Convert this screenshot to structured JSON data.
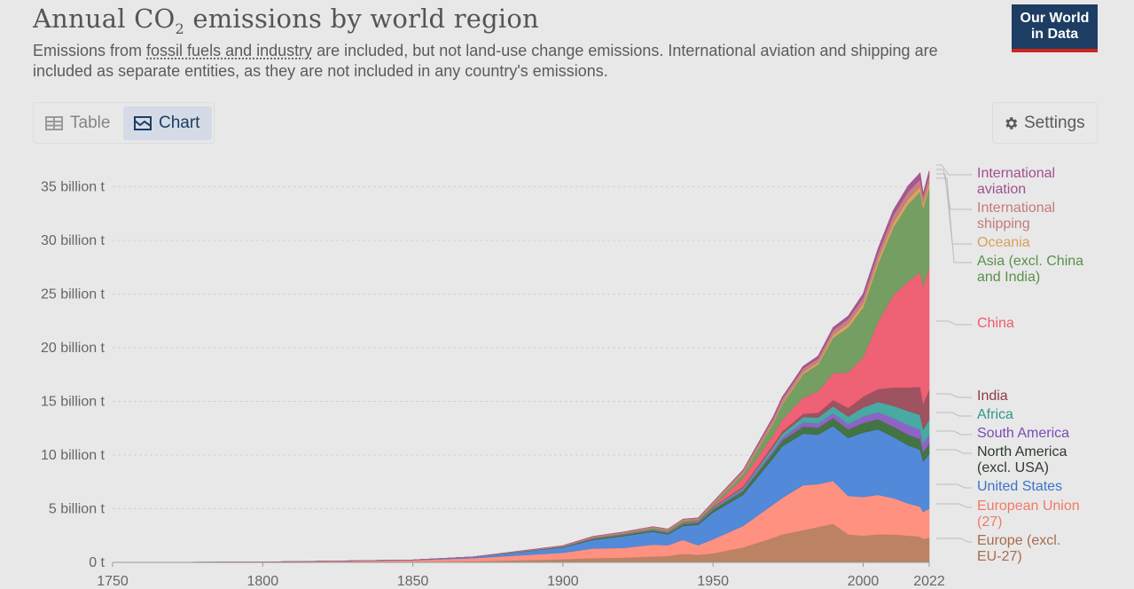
{
  "header": {
    "title_main": "Annual CO",
    "title_sub": "2",
    "title_rest": " emissions by world region",
    "subtitle_pre": "Emissions from ",
    "subtitle_link": "fossil fuels and industry",
    "subtitle_post": " are included, but not land-use change emissions. International aviation and shipping are included as separate entities, as they are not included in any country's emissions.",
    "logo_line1": "Our World",
    "logo_line2": "in Data"
  },
  "tabs": {
    "table_label": "Table",
    "chart_label": "Chart",
    "active": "Chart"
  },
  "settings": {
    "label": "Settings"
  },
  "colors": {
    "logo_bg": "#1d3d63",
    "logo_accent": "#ce261e"
  },
  "chart_data": {
    "type": "area",
    "stacked": true,
    "title": "Annual CO₂ emissions by world region",
    "xlabel": "",
    "ylabel": "",
    "xlim": [
      1750,
      2022
    ],
    "ylim": [
      0,
      37000000000
    ],
    "x_ticks": [
      1750,
      1800,
      1850,
      1900,
      1950,
      2000,
      2022
    ],
    "y_ticks": [
      {
        "value": 0,
        "label": "0 t"
      },
      {
        "value": 5000000000,
        "label": "5 billion t"
      },
      {
        "value": 10000000000,
        "label": "10 billion t"
      },
      {
        "value": 15000000000,
        "label": "15 billion t"
      },
      {
        "value": 20000000000,
        "label": "20 billion t"
      },
      {
        "value": 25000000000,
        "label": "25 billion t"
      },
      {
        "value": 30000000000,
        "label": "30 billion t"
      },
      {
        "value": 35000000000,
        "label": "35 billion t"
      }
    ],
    "grid": true,
    "legend_position": "right",
    "x": [
      1750,
      1800,
      1850,
      1870,
      1900,
      1910,
      1920,
      1930,
      1935,
      1940,
      1945,
      1950,
      1960,
      1970,
      1973,
      1980,
      1985,
      1990,
      1995,
      2000,
      2005,
      2010,
      2015,
      2019,
      2020,
      2022
    ],
    "series": [
      {
        "name": "Europe (excl. EU-27)",
        "color": "#b87c5c",
        "values": [
          0,
          0.01,
          0.05,
          0.1,
          0.3,
          0.4,
          0.45,
          0.55,
          0.6,
          0.8,
          0.7,
          0.85,
          1.4,
          2.3,
          2.6,
          3.0,
          3.3,
          3.6,
          2.6,
          2.5,
          2.6,
          2.6,
          2.5,
          2.4,
          2.2,
          2.3
        ]
      },
      {
        "name": "European Union (27)",
        "color": "#ff8c7a",
        "values": [
          0,
          0.02,
          0.15,
          0.3,
          0.6,
          0.9,
          0.9,
          1.1,
          1.0,
          1.3,
          0.9,
          1.3,
          2.0,
          3.1,
          3.4,
          4.2,
          4.0,
          4.0,
          3.6,
          3.6,
          3.7,
          3.4,
          3.0,
          2.8,
          2.5,
          2.7
        ]
      },
      {
        "name": "United States",
        "color": "#4b84d8",
        "values": [
          0,
          0,
          0.03,
          0.1,
          0.5,
          0.8,
          1.1,
          1.2,
          1.0,
          1.3,
          1.9,
          2.5,
          2.9,
          4.3,
          4.8,
          4.8,
          4.6,
          5.1,
          5.4,
          6.0,
          6.1,
          5.7,
          5.4,
          5.3,
          4.7,
          5.1
        ]
      },
      {
        "name": "North America (excl. USA)",
        "color": "#3b6e3b",
        "values": [
          0,
          0,
          0,
          0.01,
          0.05,
          0.1,
          0.1,
          0.12,
          0.12,
          0.15,
          0.18,
          0.25,
          0.35,
          0.5,
          0.55,
          0.65,
          0.65,
          0.75,
          0.8,
          0.9,
          0.95,
          0.95,
          1.0,
          1.0,
          0.9,
          0.95
        ]
      },
      {
        "name": "South America",
        "color": "#8a5cc4",
        "values": [
          0,
          0,
          0,
          0,
          0.01,
          0.02,
          0.03,
          0.04,
          0.04,
          0.05,
          0.06,
          0.08,
          0.15,
          0.25,
          0.28,
          0.4,
          0.4,
          0.45,
          0.5,
          0.6,
          0.65,
          0.8,
          0.9,
          0.85,
          0.8,
          0.85
        ]
      },
      {
        "name": "Africa",
        "color": "#3fa79e",
        "values": [
          0,
          0,
          0,
          0,
          0.01,
          0.02,
          0.03,
          0.04,
          0.05,
          0.06,
          0.07,
          0.1,
          0.15,
          0.3,
          0.35,
          0.5,
          0.55,
          0.65,
          0.7,
          0.85,
          0.95,
          1.15,
          1.3,
          1.4,
          1.3,
          1.4
        ]
      },
      {
        "name": "India",
        "color": "#9b4a58",
        "values": [
          0,
          0,
          0,
          0,
          0.01,
          0.02,
          0.03,
          0.03,
          0.03,
          0.05,
          0.05,
          0.07,
          0.12,
          0.2,
          0.22,
          0.3,
          0.45,
          0.58,
          0.8,
          1.0,
          1.2,
          1.7,
          2.2,
          2.6,
          2.4,
          2.8
        ]
      },
      {
        "name": "China",
        "color": "#ef5a6f",
        "values": [
          0,
          0,
          0,
          0,
          0.01,
          0.02,
          0.02,
          0.03,
          0.03,
          0.05,
          0.05,
          0.08,
          0.8,
          0.9,
          1.1,
          1.5,
          2.0,
          2.5,
          3.3,
          3.7,
          6.3,
          8.6,
          9.9,
          10.7,
          10.9,
          11.4
        ]
      },
      {
        "name": "Asia (excl. China and India)",
        "color": "#6f9a5b",
        "values": [
          0,
          0,
          0,
          0,
          0.02,
          0.05,
          0.07,
          0.1,
          0.12,
          0.15,
          0.1,
          0.2,
          0.4,
          1.1,
          1.4,
          2.2,
          2.5,
          3.3,
          4.2,
          4.6,
          5.4,
          6.3,
          7.2,
          7.5,
          7.3,
          7.4
        ]
      },
      {
        "name": "Oceania",
        "color": "#d9a05b",
        "values": [
          0,
          0,
          0,
          0,
          0.01,
          0.01,
          0.01,
          0.02,
          0.02,
          0.02,
          0.03,
          0.04,
          0.06,
          0.1,
          0.12,
          0.18,
          0.2,
          0.3,
          0.32,
          0.38,
          0.42,
          0.45,
          0.45,
          0.45,
          0.43,
          0.44
        ]
      },
      {
        "name": "International shipping",
        "color": "#c47a7a",
        "values": [
          0,
          0,
          0,
          0,
          0.05,
          0.08,
          0.09,
          0.1,
          0.1,
          0.1,
          0.1,
          0.15,
          0.25,
          0.35,
          0.4,
          0.35,
          0.35,
          0.4,
          0.45,
          0.55,
          0.6,
          0.7,
          0.7,
          0.7,
          0.65,
          0.7
        ]
      },
      {
        "name": "International aviation",
        "color": "#a0508f",
        "values": [
          0,
          0,
          0,
          0,
          0,
          0,
          0,
          0,
          0,
          0,
          0.01,
          0.02,
          0.05,
          0.15,
          0.17,
          0.2,
          0.22,
          0.26,
          0.28,
          0.35,
          0.4,
          0.45,
          0.55,
          0.6,
          0.3,
          0.45
        ]
      }
    ],
    "value_unit": "billion t"
  },
  "legend": [
    {
      "lines": [
        "International",
        "aviation"
      ],
      "color": "#a0508f"
    },
    {
      "lines": [
        "International",
        "shipping"
      ],
      "color": "#c47a7a"
    },
    {
      "lines": [
        "Oceania"
      ],
      "color": "#d9a05b"
    },
    {
      "lines": [
        "Asia (excl. China",
        "and India)"
      ],
      "color": "#5b8f4a"
    },
    {
      "lines": [
        "China"
      ],
      "color": "#ef5a6f"
    },
    {
      "lines": [
        "India"
      ],
      "color": "#8a3b48"
    },
    {
      "lines": [
        "Africa"
      ],
      "color": "#2f978e"
    },
    {
      "lines": [
        "South America"
      ],
      "color": "#7a4cb4"
    },
    {
      "lines": [
        "North America",
        "(excl. USA)"
      ],
      "color": "#2e3a2e"
    },
    {
      "lines": [
        "United States"
      ],
      "color": "#3b74c8"
    },
    {
      "lines": [
        "European Union",
        "(27)"
      ],
      "color": "#f07a68"
    },
    {
      "lines": [
        "Europe (excl.",
        "EU-27)"
      ],
      "color": "#a86c4c"
    }
  ]
}
